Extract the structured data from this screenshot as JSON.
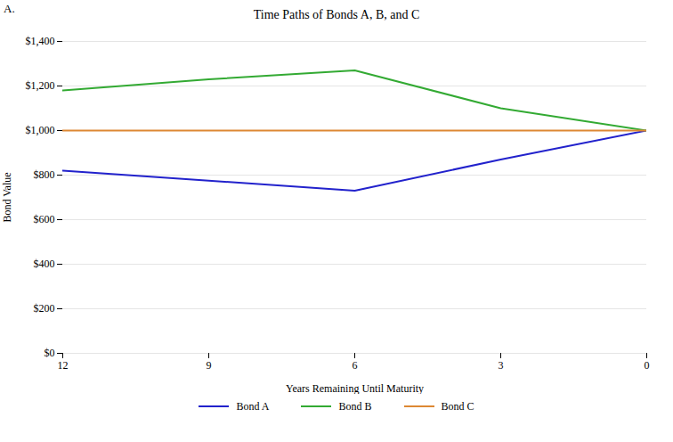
{
  "chart_data": {
    "type": "line",
    "title": "Time Paths of Bonds A, B, and C",
    "annotation": "A.",
    "xlabel": "Years Remaining Until Maturity",
    "ylabel": "Bond Value",
    "x": [
      12,
      9,
      6,
      3,
      0
    ],
    "series": [
      {
        "name": "Bond A",
        "color": "#2222cc",
        "values": [
          820,
          775,
          730,
          870,
          1000
        ]
      },
      {
        "name": "Bond B",
        "color": "#33aa33",
        "values": [
          1180,
          1230,
          1270,
          1100,
          1000
        ]
      },
      {
        "name": "Bond C",
        "color": "#dd8833",
        "values": [
          1000,
          1000,
          1000,
          1000,
          1000
        ]
      }
    ],
    "xlim": [
      12,
      0
    ],
    "xticks": [
      12,
      9,
      6,
      3,
      0
    ],
    "ylim": [
      0,
      1400
    ],
    "yticks": [
      {
        "value": 0,
        "label": "$0"
      },
      {
        "value": 200,
        "label": "$200"
      },
      {
        "value": 400,
        "label": "$400"
      },
      {
        "value": 600,
        "label": "$600"
      },
      {
        "value": 800,
        "label": "$800"
      },
      {
        "value": 1000,
        "label": "$1,000"
      },
      {
        "value": 1200,
        "label": "$1,200"
      },
      {
        "value": 1400,
        "label": "$1,400"
      }
    ],
    "grid": true,
    "legend": "bottom"
  }
}
